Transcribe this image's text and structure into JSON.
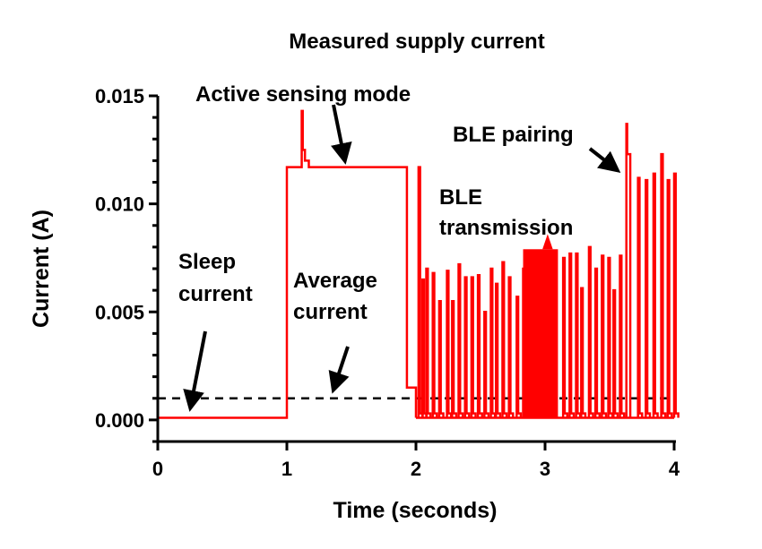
{
  "chart_data": {
    "type": "line",
    "title": "Measured supply current",
    "xlabel": "Time (seconds)",
    "ylabel": "Current (A)",
    "xlim": [
      0,
      4
    ],
    "ylim": [
      -0.001,
      0.015
    ],
    "xticks": [
      0,
      1,
      2,
      3,
      4
    ],
    "xtick_labels": [
      "0",
      "1",
      "2",
      "3",
      "4"
    ],
    "yticks": [
      0,
      0.005,
      0.01,
      0.015
    ],
    "ytick_labels": [
      "0.000",
      "0.005",
      "0.010",
      "0.015"
    ],
    "grid": false,
    "colors": {
      "trace": "#ff0000",
      "average": "#000000",
      "axis": "#000000"
    },
    "average_current": 0.001,
    "sleep_current": 0.0001,
    "segments": {
      "sleep": {
        "t_start": 0,
        "t_end": 1.0,
        "value": 0.0001
      },
      "active": {
        "t_start": 1.0,
        "t_end": 1.93,
        "value": 0.0117,
        "startup_spike": {
          "t": 1.12,
          "value": 0.0143
        }
      },
      "idle_step": {
        "t_start": 1.93,
        "t_end": 2.0,
        "value": 0.0015
      },
      "dense_burst": {
        "t_start": 2.83,
        "t_end": 3.1,
        "value": 0.0079,
        "peak": 0.0086
      }
    },
    "spikes": [
      [
        2.02,
        0.0117
      ],
      [
        2.05,
        0.0065
      ],
      [
        2.08,
        0.007
      ],
      [
        2.13,
        0.0068
      ],
      [
        2.18,
        0.0055
      ],
      [
        2.24,
        0.0069
      ],
      [
        2.28,
        0.0055
      ],
      [
        2.33,
        0.0072
      ],
      [
        2.38,
        0.0066
      ],
      [
        2.43,
        0.0066
      ],
      [
        2.48,
        0.0067
      ],
      [
        2.53,
        0.005
      ],
      [
        2.58,
        0.007
      ],
      [
        2.62,
        0.0063
      ],
      [
        2.67,
        0.0073
      ],
      [
        2.72,
        0.0066
      ],
      [
        2.78,
        0.0057
      ],
      [
        2.83,
        0.007
      ],
      [
        3.14,
        0.0075
      ],
      [
        3.19,
        0.0077
      ],
      [
        3.24,
        0.0077
      ],
      [
        3.28,
        0.0061
      ],
      [
        3.34,
        0.008
      ],
      [
        3.39,
        0.007
      ],
      [
        3.44,
        0.0076
      ],
      [
        3.49,
        0.0075
      ],
      [
        3.53,
        0.006
      ],
      [
        3.58,
        0.0076
      ],
      [
        3.63,
        0.0137
      ],
      [
        3.72,
        0.0112
      ],
      [
        3.78,
        0.0111
      ],
      [
        3.84,
        0.0114
      ],
      [
        3.9,
        0.0123
      ],
      [
        3.95,
        0.0111
      ],
      [
        4.0,
        0.0114
      ]
    ],
    "annotations": {
      "active": "Active sensing mode",
      "pairing": "BLE pairing",
      "ble_line1": "BLE",
      "ble_line2": "transmission",
      "sleep_line1": "Sleep",
      "sleep_line2": "current",
      "avg_line1": "Average",
      "avg_line2": "current"
    }
  }
}
